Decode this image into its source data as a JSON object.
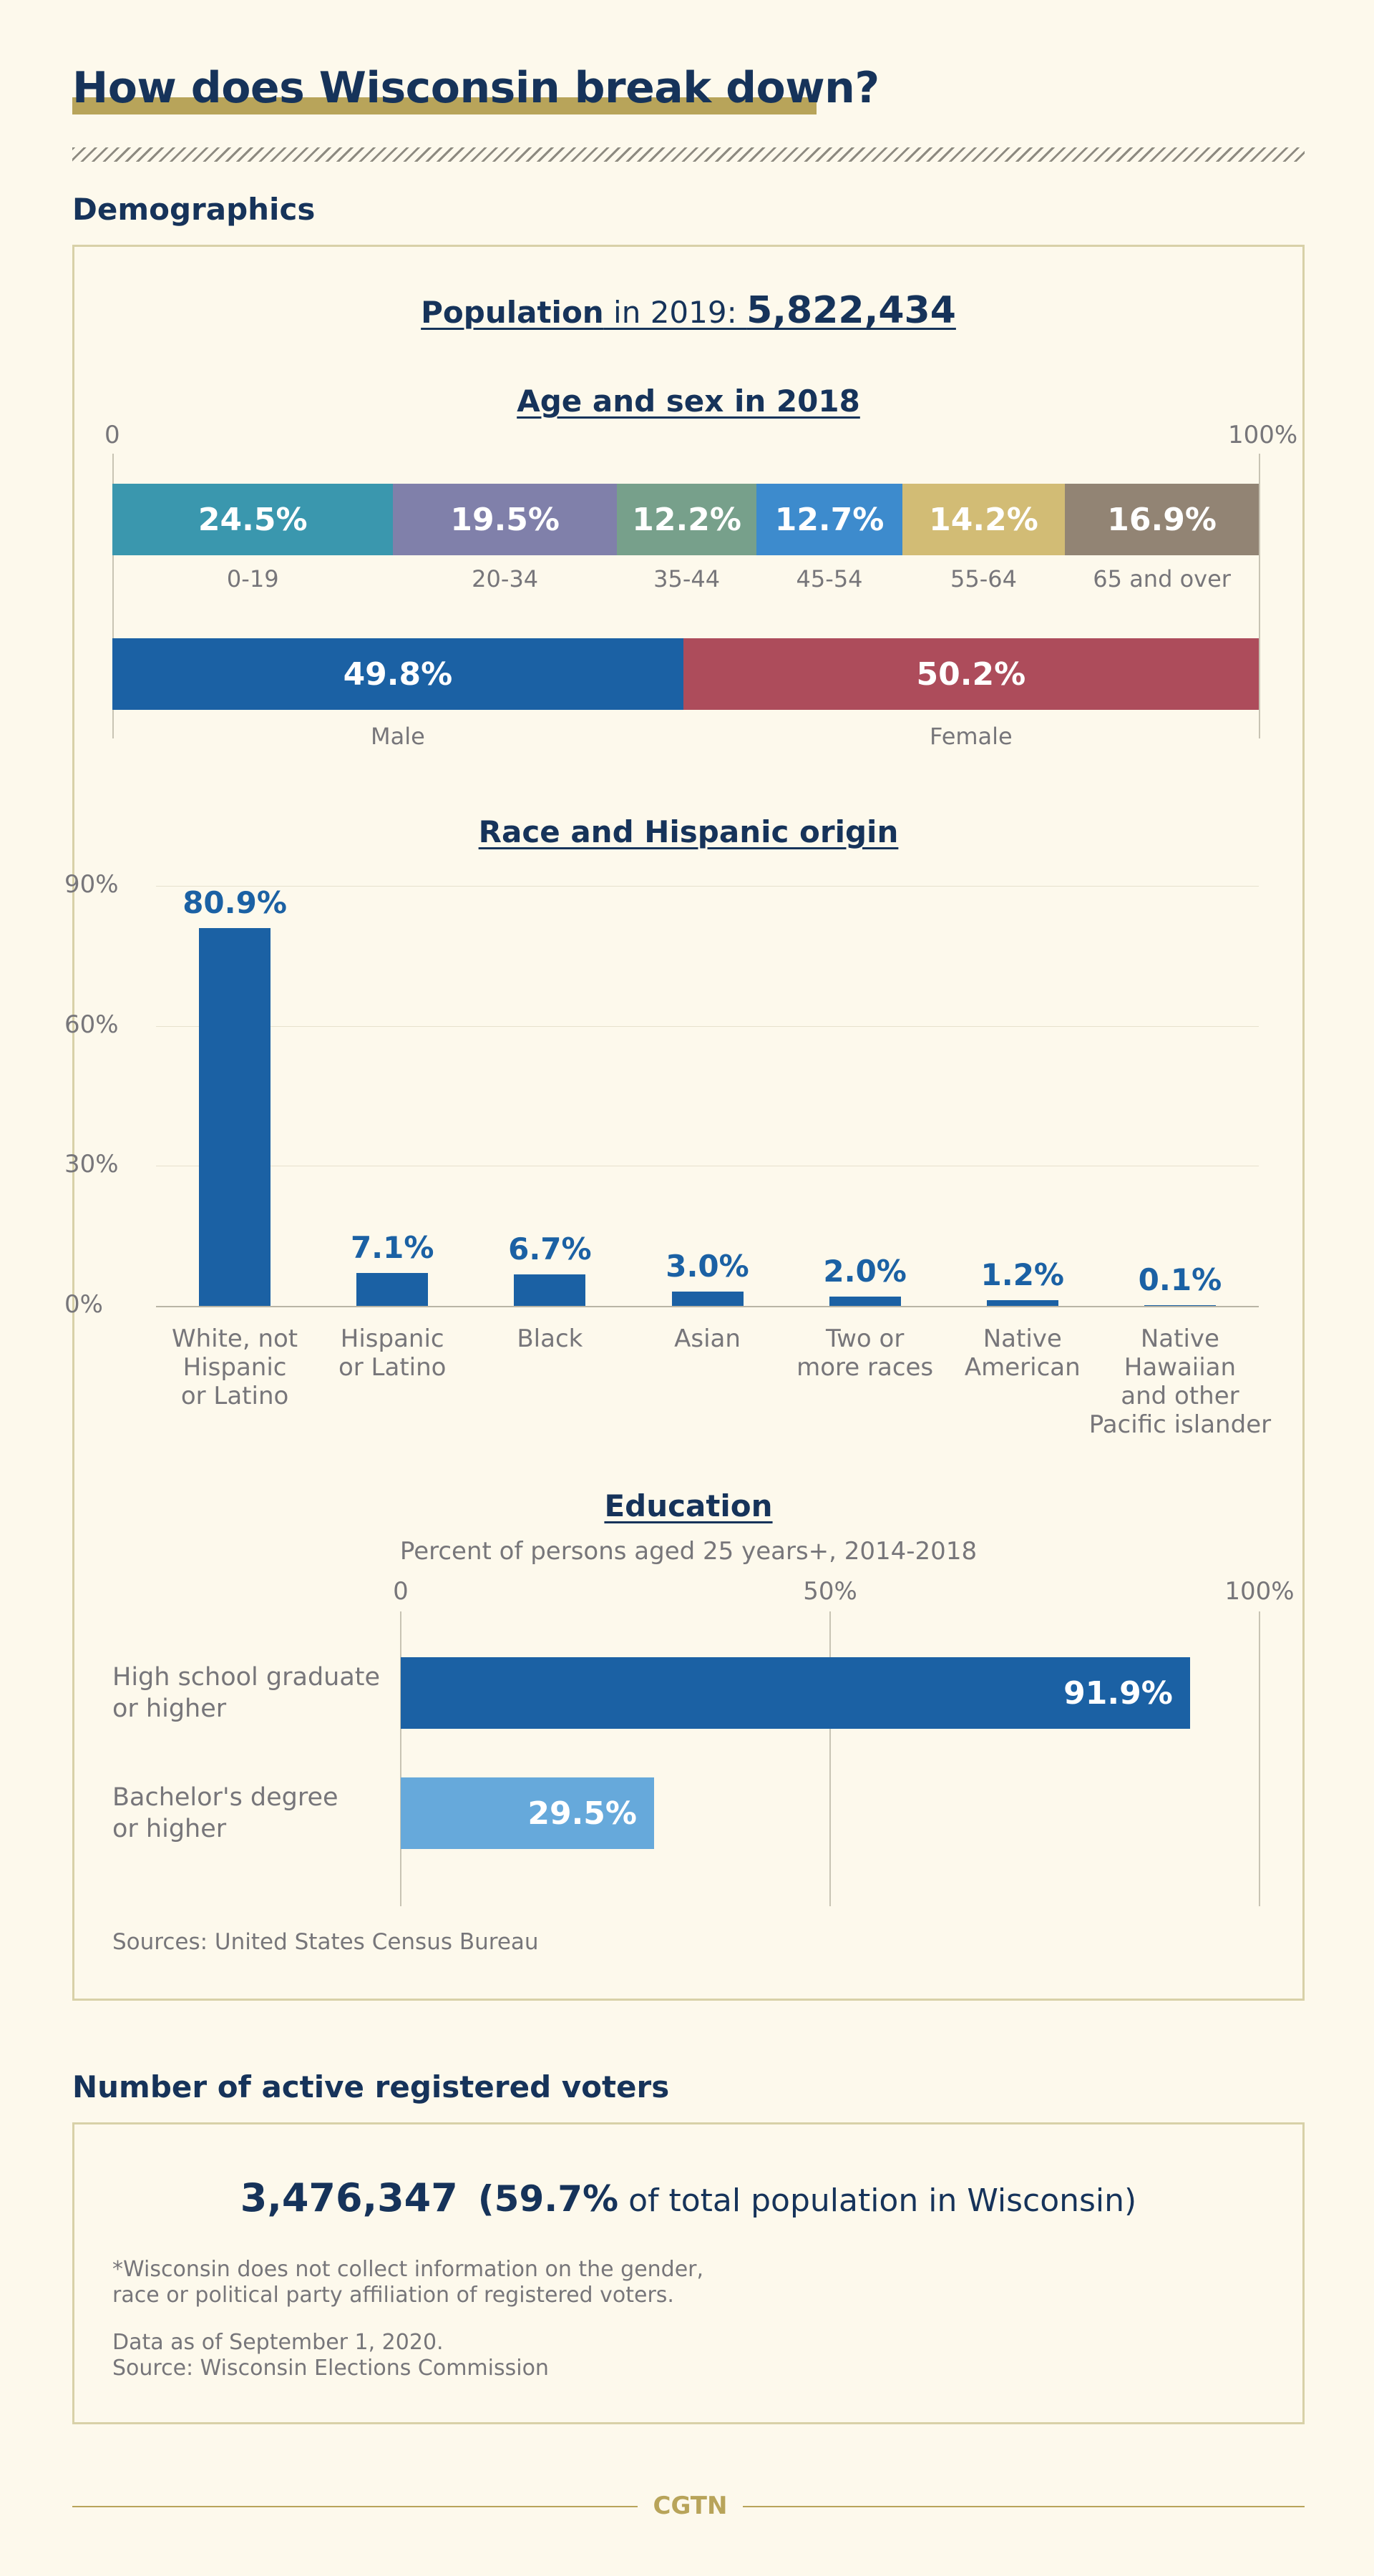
{
  "title": "How does Wisconsin break down?",
  "sections": {
    "demographics": "Demographics",
    "voters": "Number of active registered voters"
  },
  "population": {
    "label": "Population",
    "year_text": " in 2019: ",
    "value": "5,822,434"
  },
  "chart_data": [
    {
      "type": "bar",
      "orientation": "horizontal-stacked",
      "title": "Age and sex in 2018",
      "axis_labels": [
        "0",
        "100%"
      ],
      "categories": [
        "0-19",
        "20-34",
        "35-44",
        "45-54",
        "55-64",
        "65 and over"
      ],
      "values": [
        24.5,
        19.5,
        12.2,
        12.7,
        14.2,
        16.9
      ],
      "value_labels": [
        "24.5%",
        "19.5%",
        "12.2%",
        "12.7%",
        "14.2%",
        "16.9%"
      ],
      "colors": [
        "#3a97ae",
        "#8080aa",
        "#77a08b",
        "#3d8bcd",
        "#d2bc75",
        "#928474"
      ],
      "xlim": [
        0,
        100
      ]
    },
    {
      "type": "bar",
      "orientation": "horizontal-stacked",
      "categories": [
        "Male",
        "Female"
      ],
      "values": [
        49.8,
        50.2
      ],
      "value_labels": [
        "49.8%",
        "50.2%"
      ],
      "colors": [
        "#1b61a4",
        "#ad4c5b"
      ],
      "xlim": [
        0,
        100
      ]
    },
    {
      "type": "bar",
      "title": "Race and Hispanic origin",
      "categories": [
        "White, not\nHispanic\nor Latino",
        "Hispanic\nor Latino",
        "Black",
        "Asian",
        "Two or\nmore races",
        "Native\nAmerican",
        "Native\nHawaiian\nand other\nPacific islander"
      ],
      "values": [
        80.9,
        7.1,
        6.7,
        3.0,
        2.0,
        1.2,
        0.1
      ],
      "value_labels": [
        "80.9%",
        "7.1%",
        "6.7%",
        "3.0%",
        "2.0%",
        "1.2%",
        "0.1%"
      ],
      "yticks": [
        "0%",
        "30%",
        "60%",
        "90%"
      ],
      "ylim": [
        0,
        90
      ],
      "grid": true,
      "color": "#1b61a4"
    },
    {
      "type": "bar",
      "orientation": "horizontal",
      "title": "Education",
      "subtitle": "Percent of persons aged 25 years+, 2014-2018",
      "xticks": [
        "0",
        "50%",
        "100%"
      ],
      "xlim": [
        0,
        100
      ],
      "categories": [
        "High school graduate\nor higher",
        "Bachelor's degree\nor higher"
      ],
      "values": [
        91.9,
        29.5
      ],
      "value_labels": [
        "91.9%",
        "29.5%"
      ],
      "colors": [
        "#1b61a4",
        "#66a9db"
      ]
    }
  ],
  "sources_demographics": "Sources: United States Census Bureau",
  "voters": {
    "count": "3,476,347",
    "percent": "(59.7%",
    "rest": " of total population in Wisconsin)",
    "note": "*Wisconsin does not collect information on the gender,\nrace or political party affiliation of registered voters.",
    "data_date": "Data as of September 1, 2020.",
    "source": "Source: Wisconsin Elections Commission"
  },
  "footer": "CGTN"
}
